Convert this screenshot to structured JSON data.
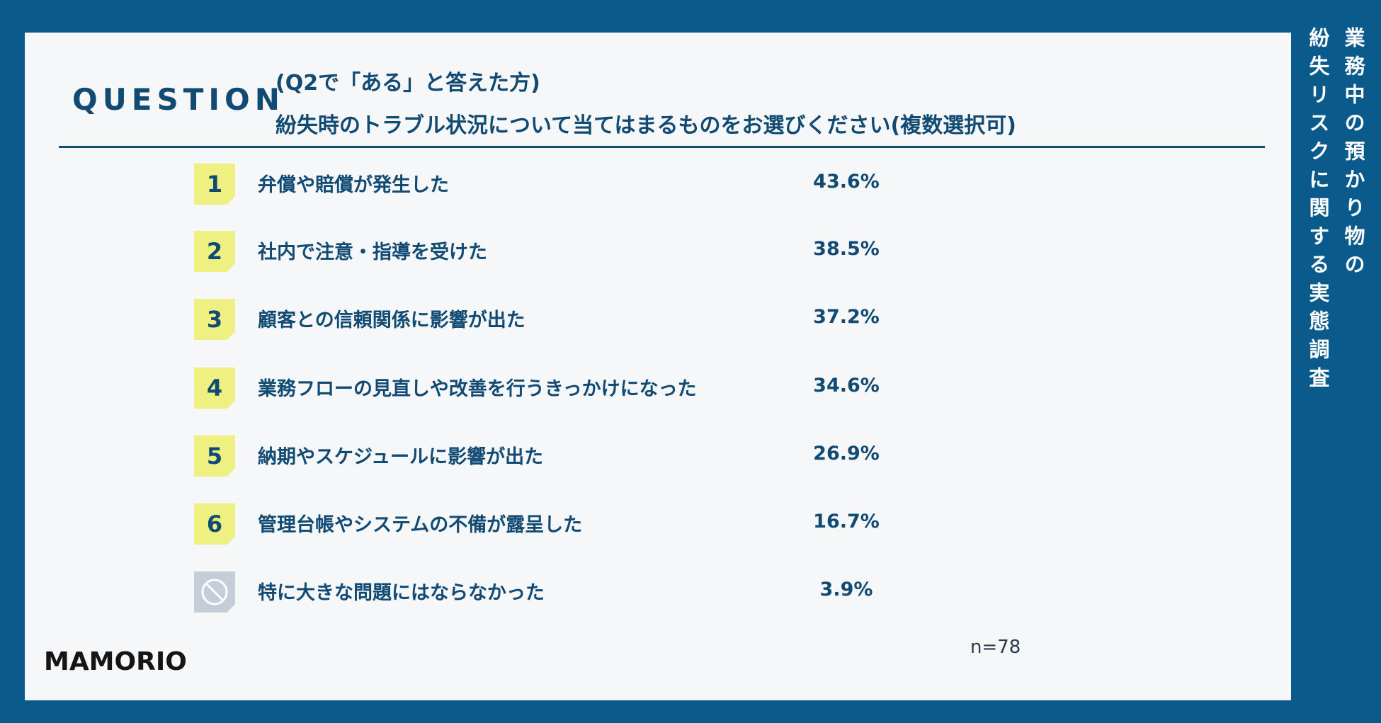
{
  "side_title": [
    "業務中の預かり物の",
    "紛失リスクに関する実態調査"
  ],
  "question": {
    "label": "QUESTION",
    "line1": "(Q2で「ある」と答えた方)",
    "line2": "紛失時のトラブル状況について当てはまるものをお選びください(複数選択可)"
  },
  "chart_data": {
    "type": "table",
    "rows": [
      {
        "rank": "1",
        "label": "弁償や賠償が発生した",
        "value": "43.6%"
      },
      {
        "rank": "2",
        "label": "社内で注意・指導を受けた",
        "value": "38.5%"
      },
      {
        "rank": "3",
        "label": "顧客との信頼関係に影響が出た",
        "value": "37.2%"
      },
      {
        "rank": "4",
        "label": "業務フローの見直しや改善を行うきっかけになった",
        "value": "34.6%"
      },
      {
        "rank": "5",
        "label": "納期やスケジュールに影響が出た",
        "value": "26.9%"
      },
      {
        "rank": "6",
        "label": "管理台帳やシステムの不備が露呈した",
        "value": "16.7%"
      },
      {
        "rank": "none",
        "label": "特に大きな問題にはならなかった",
        "value": "3.9%"
      }
    ]
  },
  "sample_size": "n=78",
  "logo": "MAMORIO",
  "colors": {
    "background": "#0a5a8c",
    "panel": "#f6f7f9",
    "text": "#114a73",
    "badge": "#eef182",
    "badge_none": "#c5ced8"
  }
}
